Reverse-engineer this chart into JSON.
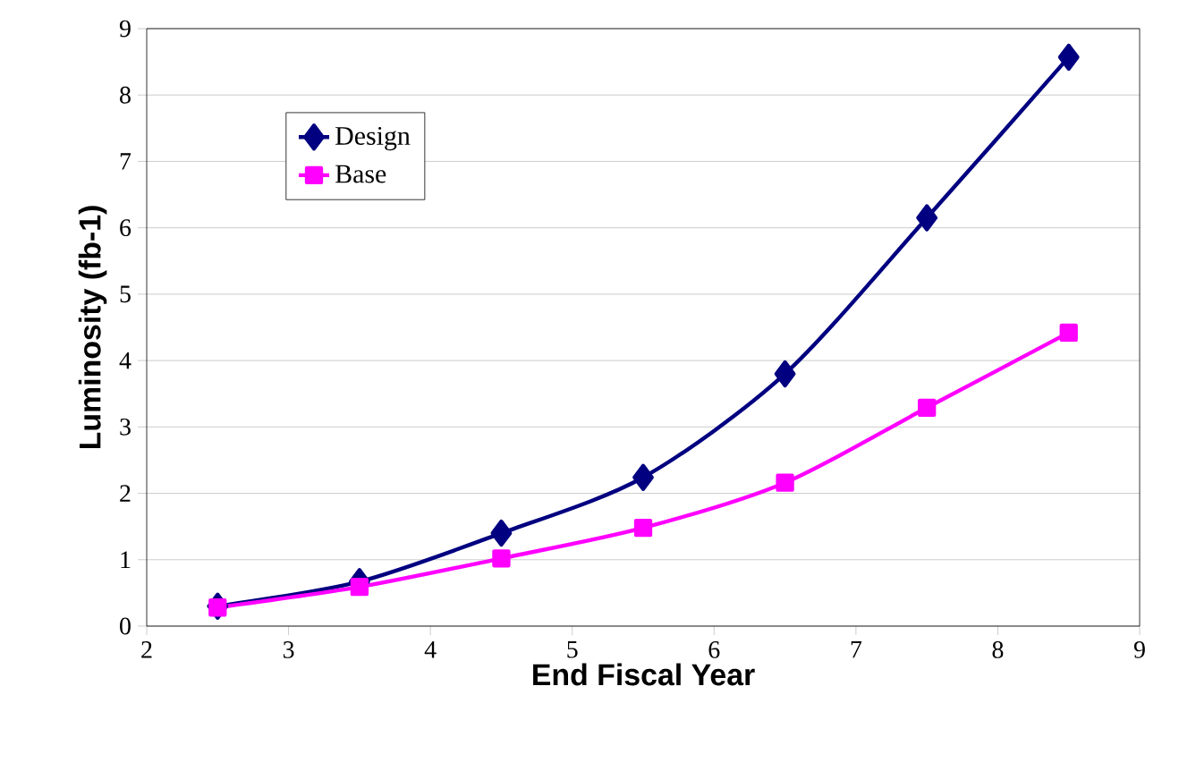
{
  "chart_data": {
    "type": "line",
    "xlabel": "End Fiscal  Year",
    "ylabel": "Luminosity (fb-1)",
    "xlim": [
      2,
      9
    ],
    "xticks": [
      2,
      3,
      4,
      5,
      6,
      7,
      8,
      9
    ],
    "ylim": [
      0,
      9
    ],
    "yticks": [
      0,
      1,
      2,
      3,
      4,
      5,
      6,
      7,
      8,
      9
    ],
    "grid": "y",
    "legend": "top left",
    "line_style": "solid",
    "series": [
      {
        "name": "Design",
        "color": "#000080",
        "marker": "diamond",
        "x": [
          2.5,
          3.5,
          4.5,
          5.5,
          6.5,
          7.5,
          8.5
        ],
        "values": [
          0.3,
          0.67,
          1.4,
          2.24,
          3.8,
          6.15,
          8.57
        ]
      },
      {
        "name": "Base",
        "color": "#ff00ff",
        "marker": "square",
        "x": [
          2.5,
          3.5,
          4.5,
          5.5,
          6.5,
          7.5,
          8.5
        ],
        "values": [
          0.28,
          0.59,
          1.02,
          1.48,
          2.16,
          3.29,
          4.42
        ]
      }
    ]
  }
}
